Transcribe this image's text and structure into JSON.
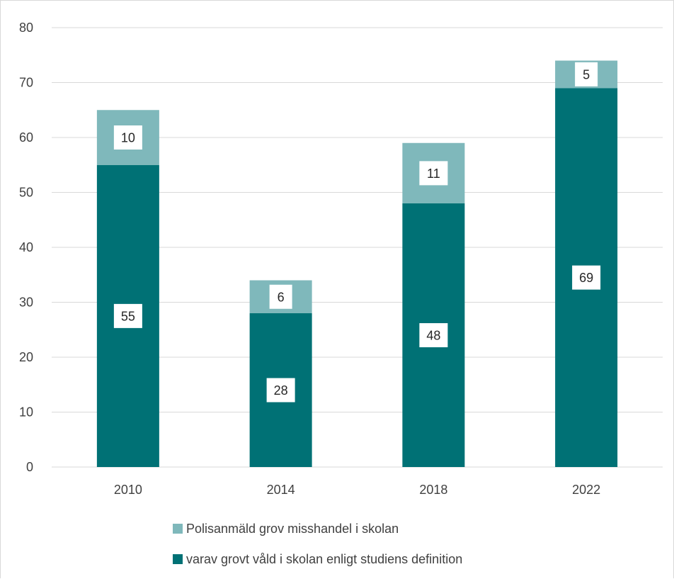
{
  "colors": {
    "series_reported": "#7fb8bb",
    "series_severe": "#007175",
    "gridline": "#d9d9d9",
    "label_box": "#ffffff",
    "text": "#404040"
  },
  "chart_data": {
    "type": "bar",
    "stacked": true,
    "categories": [
      "2010",
      "2014",
      "2018",
      "2022"
    ],
    "series": [
      {
        "name": "varav grovt våld i skolan enligt studiens definition",
        "values": [
          55,
          28,
          48,
          69
        ],
        "color": "#007175"
      },
      {
        "name": "Polisanmäld grov misshandel i skolan",
        "values": [
          10,
          6,
          11,
          5
        ],
        "color": "#7fb8bb"
      }
    ],
    "data_labels": [
      [
        "55",
        "28",
        "48",
        "69"
      ],
      [
        "10",
        "6",
        "11",
        "5"
      ]
    ],
    "ylim": [
      0,
      80
    ],
    "yticks": [
      "0",
      "10",
      "20",
      "30",
      "40",
      "50",
      "60",
      "70",
      "80"
    ],
    "grid": true,
    "legend_position": "bottom",
    "legend": [
      {
        "label": "Polisanmäld grov misshandel i skolan",
        "color": "#7fb8bb"
      },
      {
        "label": "varav grovt våld i skolan enligt studiens definition",
        "color": "#007175"
      }
    ]
  }
}
